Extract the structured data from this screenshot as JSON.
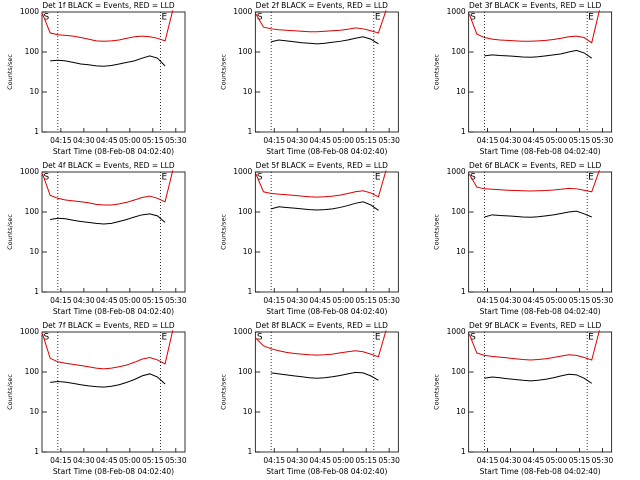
{
  "chart_data": [
    {
      "type": "line",
      "title": "Det 1f BLACK = Events, RED = LLD",
      "xlabel": "Start Time (08-Feb-08 04:02:40)",
      "ylabel": "Counts/sec",
      "log_y": true,
      "x": [
        243,
        248,
        253,
        258,
        263,
        268,
        273,
        278,
        283,
        288,
        293,
        298,
        303,
        308,
        313,
        318,
        323,
        328,
        333
      ],
      "xlim": [
        242.67,
        336
      ],
      "ylim": [
        1,
        1000
      ],
      "yticks": [
        1,
        10,
        100,
        1000
      ],
      "xticks": [
        {
          "value": 255,
          "label": "04:15"
        },
        {
          "value": 270,
          "label": "04:30"
        },
        {
          "value": 285,
          "label": "04:45"
        },
        {
          "value": 300,
          "label": "05:00"
        },
        {
          "value": 315,
          "label": "05:15"
        },
        {
          "value": 330,
          "label": "05:30"
        }
      ],
      "vlines": [
        253,
        320
      ],
      "annotations": [
        {
          "text": "S",
          "x": 243
        },
        {
          "text": "E",
          "x": 320
        }
      ],
      "series": [
        {
          "name": "LLD",
          "color": "#dd0000",
          "values": [
            900,
            300,
            270,
            260,
            250,
            230,
            210,
            190,
            185,
            190,
            200,
            220,
            240,
            250,
            240,
            220,
            190,
            1100,
            null
          ]
        },
        {
          "name": "Events",
          "color": "#000000",
          "values": [
            null,
            60,
            62,
            60,
            55,
            50,
            48,
            45,
            44,
            46,
            50,
            55,
            60,
            70,
            80,
            70,
            45,
            null,
            null
          ]
        }
      ]
    },
    {
      "type": "line",
      "title": "Det 2f BLACK = Events, RED = LLD",
      "xlabel": "Start Time (08-Feb-08 04:02:40)",
      "ylabel": "Counts/sec",
      "log_y": true,
      "x": [
        243,
        248,
        253,
        258,
        263,
        268,
        273,
        278,
        283,
        288,
        293,
        298,
        303,
        308,
        313,
        318,
        323,
        328,
        333
      ],
      "xlim": [
        242.67,
        336
      ],
      "ylim": [
        1,
        1000
      ],
      "yticks": [
        1,
        10,
        100,
        1000
      ],
      "xticks": [
        {
          "value": 255,
          "label": "04:15"
        },
        {
          "value": 270,
          "label": "04:30"
        },
        {
          "value": 285,
          "label": "04:45"
        },
        {
          "value": 300,
          "label": "05:00"
        },
        {
          "value": 315,
          "label": "05:15"
        },
        {
          "value": 330,
          "label": "05:30"
        }
      ],
      "vlines": [
        253,
        320
      ],
      "annotations": [
        {
          "text": "S",
          "x": 243
        },
        {
          "text": "E",
          "x": 320
        }
      ],
      "series": [
        {
          "name": "LLD",
          "color": "#dd0000",
          "values": [
            900,
            420,
            380,
            360,
            350,
            340,
            330,
            320,
            320,
            330,
            340,
            350,
            370,
            400,
            380,
            340,
            300,
            1100,
            null
          ]
        },
        {
          "name": "Events",
          "color": "#000000",
          "values": [
            null,
            null,
            180,
            200,
            190,
            180,
            170,
            165,
            160,
            165,
            175,
            185,
            200,
            220,
            240,
            210,
            160,
            null,
            null
          ]
        }
      ]
    },
    {
      "type": "line",
      "title": "Det 3f BLACK = Events, RED = LLD",
      "xlabel": "Start Time (08-Feb-08 04:02:40)",
      "ylabel": "Counts/sec",
      "log_y": true,
      "x": [
        243,
        248,
        253,
        258,
        263,
        268,
        273,
        278,
        283,
        288,
        293,
        298,
        303,
        308,
        313,
        318,
        323,
        328,
        333
      ],
      "xlim": [
        242.67,
        336
      ],
      "ylim": [
        1,
        1000
      ],
      "yticks": [
        1,
        10,
        100,
        1000
      ],
      "xticks": [
        {
          "value": 255,
          "label": "04:15"
        },
        {
          "value": 270,
          "label": "04:30"
        },
        {
          "value": 285,
          "label": "04:45"
        },
        {
          "value": 300,
          "label": "05:00"
        },
        {
          "value": 315,
          "label": "05:15"
        },
        {
          "value": 330,
          "label": "05:30"
        }
      ],
      "vlines": [
        253,
        320
      ],
      "annotations": [
        {
          "text": "S",
          "x": 243
        },
        {
          "text": "E",
          "x": 320
        }
      ],
      "series": [
        {
          "name": "LLD",
          "color": "#dd0000",
          "values": [
            900,
            280,
            230,
            210,
            200,
            195,
            190,
            185,
            185,
            190,
            195,
            205,
            220,
            240,
            250,
            230,
            170,
            1100,
            null
          ]
        },
        {
          "name": "Events",
          "color": "#000000",
          "values": [
            null,
            null,
            80,
            85,
            82,
            80,
            78,
            75,
            74,
            76,
            80,
            85,
            90,
            100,
            110,
            95,
            70,
            null,
            null
          ]
        }
      ]
    },
    {
      "type": "line",
      "title": "Det 4f BLACK = Events, RED = LLD",
      "xlabel": "Start Time (08-Feb-08 04:02:40)",
      "ylabel": "Counts/sec",
      "log_y": true,
      "x": [
        243,
        248,
        253,
        258,
        263,
        268,
        273,
        278,
        283,
        288,
        293,
        298,
        303,
        308,
        313,
        318,
        323,
        328,
        333
      ],
      "xlim": [
        242.67,
        336
      ],
      "ylim": [
        1,
        1000
      ],
      "yticks": [
        1,
        10,
        100,
        1000
      ],
      "xticks": [
        {
          "value": 255,
          "label": "04:15"
        },
        {
          "value": 270,
          "label": "04:30"
        },
        {
          "value": 285,
          "label": "04:45"
        },
        {
          "value": 300,
          "label": "05:00"
        },
        {
          "value": 315,
          "label": "05:15"
        },
        {
          "value": 330,
          "label": "05:30"
        }
      ],
      "vlines": [
        253,
        320
      ],
      "annotations": [
        {
          "text": "S",
          "x": 243
        },
        {
          "text": "E",
          "x": 320
        }
      ],
      "series": [
        {
          "name": "LLD",
          "color": "#dd0000",
          "values": [
            900,
            260,
            220,
            200,
            190,
            180,
            170,
            155,
            150,
            150,
            160,
            175,
            200,
            230,
            250,
            220,
            180,
            1100,
            null
          ]
        },
        {
          "name": "Events",
          "color": "#000000",
          "values": [
            null,
            65,
            70,
            68,
            62,
            58,
            55,
            52,
            50,
            52,
            58,
            65,
            75,
            85,
            90,
            80,
            55,
            null,
            null
          ]
        }
      ]
    },
    {
      "type": "line",
      "title": "Det 5f BLACK = Events, RED = LLD",
      "xlabel": "Start Time (08-Feb-08 04:02:40)",
      "ylabel": "Counts/sec",
      "log_y": true,
      "x": [
        243,
        248,
        253,
        258,
        263,
        268,
        273,
        278,
        283,
        288,
        293,
        298,
        303,
        308,
        313,
        318,
        323,
        328,
        333
      ],
      "xlim": [
        242.67,
        336
      ],
      "ylim": [
        1,
        1000
      ],
      "yticks": [
        1,
        10,
        100,
        1000
      ],
      "xticks": [
        {
          "value": 255,
          "label": "04:15"
        },
        {
          "value": 270,
          "label": "04:30"
        },
        {
          "value": 285,
          "label": "04:45"
        },
        {
          "value": 300,
          "label": "05:00"
        },
        {
          "value": 315,
          "label": "05:15"
        },
        {
          "value": 330,
          "label": "05:30"
        }
      ],
      "vlines": [
        253,
        320
      ],
      "annotations": [
        {
          "text": "S",
          "x": 243
        },
        {
          "text": "E",
          "x": 320
        }
      ],
      "series": [
        {
          "name": "LLD",
          "color": "#dd0000",
          "values": [
            900,
            320,
            290,
            280,
            270,
            260,
            250,
            240,
            235,
            240,
            250,
            265,
            290,
            320,
            340,
            300,
            240,
            1100,
            null
          ]
        },
        {
          "name": "Events",
          "color": "#000000",
          "values": [
            null,
            null,
            120,
            135,
            130,
            125,
            120,
            115,
            112,
            115,
            120,
            130,
            145,
            165,
            180,
            150,
            110,
            null,
            null
          ]
        }
      ]
    },
    {
      "type": "line",
      "title": "Det 6f BLACK = Events, RED = LLD",
      "xlabel": "Start Time (08-Feb-08 04:02:40)",
      "ylabel": "Counts/sec",
      "log_y": true,
      "x": [
        243,
        248,
        253,
        258,
        263,
        268,
        273,
        278,
        283,
        288,
        293,
        298,
        303,
        308,
        313,
        318,
        323,
        328,
        333
      ],
      "xlim": [
        242.67,
        336
      ],
      "ylim": [
        1,
        1000
      ],
      "yticks": [
        1,
        10,
        100,
        1000
      ],
      "xticks": [
        {
          "value": 255,
          "label": "04:15"
        },
        {
          "value": 270,
          "label": "04:30"
        },
        {
          "value": 285,
          "label": "04:45"
        },
        {
          "value": 300,
          "label": "05:00"
        },
        {
          "value": 315,
          "label": "05:15"
        },
        {
          "value": 330,
          "label": "05:30"
        }
      ],
      "vlines": [
        253,
        320
      ],
      "annotations": [
        {
          "text": "S",
          "x": 243
        },
        {
          "text": "E",
          "x": 320
        }
      ],
      "series": [
        {
          "name": "LLD",
          "color": "#dd0000",
          "values": [
            900,
            420,
            380,
            370,
            360,
            350,
            345,
            340,
            335,
            340,
            345,
            355,
            370,
            390,
            380,
            350,
            320,
            1100,
            null
          ]
        },
        {
          "name": "Events",
          "color": "#000000",
          "values": [
            null,
            null,
            75,
            85,
            82,
            80,
            78,
            75,
            74,
            76,
            80,
            85,
            92,
            100,
            105,
            90,
            75,
            null,
            null
          ]
        }
      ]
    },
    {
      "type": "line",
      "title": "Det 7f BLACK = Events, RED = LLD",
      "xlabel": "Start Time (08-Feb-08 04:02:40)",
      "ylabel": "Counts/sec",
      "log_y": true,
      "x": [
        243,
        248,
        253,
        258,
        263,
        268,
        273,
        278,
        283,
        288,
        293,
        298,
        303,
        308,
        313,
        318,
        323,
        328,
        333
      ],
      "xlim": [
        242.67,
        336
      ],
      "ylim": [
        1,
        1000
      ],
      "yticks": [
        1,
        10,
        100,
        1000
      ],
      "xticks": [
        {
          "value": 255,
          "label": "04:15"
        },
        {
          "value": 270,
          "label": "04:30"
        },
        {
          "value": 285,
          "label": "04:45"
        },
        {
          "value": 300,
          "label": "05:00"
        },
        {
          "value": 315,
          "label": "05:15"
        },
        {
          "value": 330,
          "label": "05:30"
        }
      ],
      "vlines": [
        253,
        320
      ],
      "annotations": [
        {
          "text": "S",
          "x": 243
        },
        {
          "text": "E",
          "x": 320
        }
      ],
      "series": [
        {
          "name": "LLD",
          "color": "#dd0000",
          "values": [
            900,
            220,
            180,
            165,
            155,
            145,
            135,
            125,
            120,
            125,
            135,
            150,
            175,
            210,
            230,
            200,
            160,
            1100,
            null
          ]
        },
        {
          "name": "Events",
          "color": "#000000",
          "values": [
            null,
            55,
            58,
            56,
            52,
            48,
            45,
            43,
            42,
            44,
            48,
            55,
            65,
            80,
            90,
            75,
            50,
            null,
            null
          ]
        }
      ]
    },
    {
      "type": "line",
      "title": "Det 8f BLACK = Events, RED = LLD",
      "xlabel": "Start Time (08-Feb-08 04:02:40)",
      "ylabel": "Counts/sec",
      "log_y": true,
      "x": [
        243,
        248,
        253,
        258,
        263,
        268,
        273,
        278,
        283,
        288,
        293,
        298,
        303,
        308,
        313,
        318,
        323,
        328,
        333
      ],
      "xlim": [
        242.67,
        336
      ],
      "ylim": [
        1,
        1000
      ],
      "yticks": [
        1,
        10,
        100,
        1000
      ],
      "xticks": [
        {
          "value": 255,
          "label": "04:15"
        },
        {
          "value": 270,
          "label": "04:30"
        },
        {
          "value": 285,
          "label": "04:45"
        },
        {
          "value": 300,
          "label": "05:00"
        },
        {
          "value": 315,
          "label": "05:15"
        },
        {
          "value": 330,
          "label": "05:30"
        }
      ],
      "vlines": [
        253,
        320
      ],
      "annotations": [
        {
          "text": "S",
          "x": 243
        },
        {
          "text": "E",
          "x": 320
        }
      ],
      "series": [
        {
          "name": "LLD",
          "color": "#dd0000",
          "values": [
            700,
            450,
            380,
            340,
            310,
            290,
            280,
            270,
            265,
            270,
            280,
            300,
            320,
            340,
            320,
            280,
            240,
            1100,
            null
          ]
        },
        {
          "name": "Events",
          "color": "#000000",
          "values": [
            null,
            null,
            95,
            90,
            85,
            80,
            76,
            72,
            70,
            72,
            76,
            82,
            90,
            98,
            95,
            80,
            62,
            null,
            null
          ]
        }
      ]
    },
    {
      "type": "line",
      "title": "Det 9f BLACK = Events, RED = LLD",
      "xlabel": "Start Time (08-Feb-08 04:02:40)",
      "ylabel": "Counts/sec",
      "log_y": true,
      "x": [
        243,
        248,
        253,
        258,
        263,
        268,
        273,
        278,
        283,
        288,
        293,
        298,
        303,
        308,
        313,
        318,
        323,
        328,
        333
      ],
      "xlim": [
        242.67,
        336
      ],
      "ylim": [
        1,
        1000
      ],
      "yticks": [
        1,
        10,
        100,
        1000
      ],
      "xticks": [
        {
          "value": 255,
          "label": "04:15"
        },
        {
          "value": 270,
          "label": "04:30"
        },
        {
          "value": 285,
          "label": "04:45"
        },
        {
          "value": 300,
          "label": "05:00"
        },
        {
          "value": 315,
          "label": "05:15"
        },
        {
          "value": 330,
          "label": "05:30"
        }
      ],
      "vlines": [
        253,
        320
      ],
      "annotations": [
        {
          "text": "S",
          "x": 243
        },
        {
          "text": "E",
          "x": 320
        }
      ],
      "series": [
        {
          "name": "LLD",
          "color": "#dd0000",
          "values": [
            900,
            300,
            260,
            245,
            235,
            225,
            215,
            205,
            200,
            205,
            215,
            230,
            250,
            270,
            260,
            230,
            200,
            1100,
            null
          ]
        },
        {
          "name": "Events",
          "color": "#000000",
          "values": [
            null,
            null,
            70,
            75,
            72,
            68,
            65,
            62,
            60,
            62,
            66,
            72,
            80,
            88,
            85,
            70,
            52,
            null,
            null
          ]
        }
      ]
    }
  ]
}
